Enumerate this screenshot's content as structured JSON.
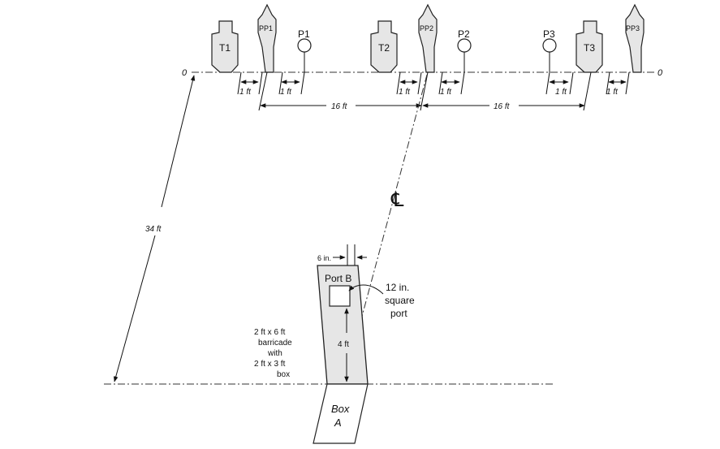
{
  "targets": {
    "t1": "T1",
    "t2": "T2",
    "t3": "T3",
    "pp1": "PP1",
    "pp2": "PP2",
    "pp3": "PP3",
    "p1": "P1",
    "p2": "P2",
    "p3": "P3"
  },
  "baseline": {
    "left_label": "0",
    "right_label": "0"
  },
  "dimensions": {
    "one_ft": "1 ft",
    "sixteen_ft": "16 ft",
    "thirtyfour_ft": "34 ft",
    "six_in": "6 in.",
    "four_ft": "4 ft"
  },
  "centerline_symbol": "℄",
  "barricade": {
    "port_label": "Port B",
    "port_note_line1": "12 in.",
    "port_note_line2": "square",
    "port_note_line3": "port",
    "desc_line1": "2 ft x 6 ft",
    "desc_line2": "barricade",
    "desc_line3": "with",
    "desc_line4": "2 ft x 3 ft",
    "desc_line5": "box"
  },
  "box": {
    "line1": "Box",
    "line2": "A"
  },
  "colors": {
    "barricade_fill": "#e6e6e6",
    "line": "#111111"
  }
}
